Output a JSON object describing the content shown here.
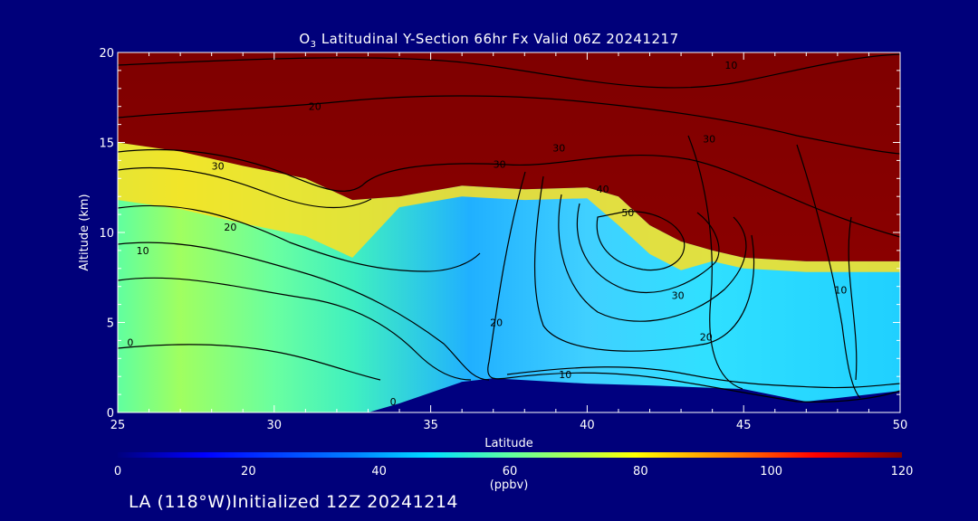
{
  "header": {
    "title_prefix": "O",
    "title_sub": "3",
    "title_rest": " Latitudinal Y-Section 66hr  Fx Valid 06Z 20241217"
  },
  "footer": {
    "label": "LA (118°W)Initialized 12Z 20241214"
  },
  "colors": {
    "background": "#00007a",
    "colormap": [
      "#00007f",
      "#0000ff",
      "#0080ff",
      "#00e0ff",
      "#60ffa0",
      "#c0ff40",
      "#ffff00",
      "#ff8000",
      "#ff0000",
      "#800000"
    ]
  },
  "chart_data": {
    "type": "heatmap",
    "xlabel": "Latitude",
    "ylabel": "Altitude (km)",
    "xlim": [
      25,
      50
    ],
    "ylim": [
      0,
      20
    ],
    "xticks": [
      25,
      30,
      35,
      40,
      45,
      50
    ],
    "yticks": [
      0,
      5,
      10,
      15,
      20
    ],
    "colorbar": {
      "min": 0,
      "max": 120,
      "ticks": [
        0,
        20,
        40,
        60,
        80,
        100,
        120
      ],
      "unit": "(ppbv)"
    },
    "tropopause_altitude_km": [
      [
        25,
        15.0
      ],
      [
        27,
        14.5
      ],
      [
        29,
        13.7
      ],
      [
        31,
        13.0
      ],
      [
        32.5,
        11.8
      ],
      [
        34,
        12.0
      ],
      [
        36,
        12.6
      ],
      [
        38,
        12.4
      ],
      [
        40,
        12.5
      ],
      [
        41,
        12.0
      ],
      [
        42,
        10.4
      ],
      [
        43,
        9.5
      ],
      [
        44,
        9.0
      ],
      [
        45,
        8.6
      ],
      [
        47,
        8.4
      ],
      [
        50,
        8.4
      ]
    ],
    "terrain_altitude_km": [
      [
        25,
        0
      ],
      [
        33,
        0
      ],
      [
        34,
        0.5
      ],
      [
        35,
        1.1
      ],
      [
        36,
        1.7
      ],
      [
        37,
        1.9
      ],
      [
        40,
        1.6
      ],
      [
        42,
        1.5
      ],
      [
        45,
        1.3
      ],
      [
        47,
        0.6
      ],
      [
        50,
        1.2
      ]
    ],
    "contour_labels": [
      {
        "text": "10",
        "lat": 44.6,
        "alt": 19.1
      },
      {
        "text": "20",
        "lat": 31.3,
        "alt": 16.8
      },
      {
        "text": "30",
        "lat": 43.9,
        "alt": 15.0
      },
      {
        "text": "30",
        "lat": 39.1,
        "alt": 14.5
      },
      {
        "text": "30",
        "lat": 28.2,
        "alt": 13.5
      },
      {
        "text": "30",
        "lat": 37.2,
        "alt": 13.6
      },
      {
        "text": "20",
        "lat": 28.6,
        "alt": 10.1
      },
      {
        "text": "10",
        "lat": 25.8,
        "alt": 8.8
      },
      {
        "text": "50",
        "lat": 41.3,
        "alt": 10.9
      },
      {
        "text": "40",
        "lat": 40.5,
        "alt": 12.2
      },
      {
        "text": "30",
        "lat": 42.9,
        "alt": 6.3
      },
      {
        "text": "20",
        "lat": 37.1,
        "alt": 4.8
      },
      {
        "text": "20",
        "lat": 43.8,
        "alt": 4.0
      },
      {
        "text": "10",
        "lat": 39.3,
        "alt": 1.9
      },
      {
        "text": "10",
        "lat": 48.1,
        "alt": 6.6
      },
      {
        "text": "0",
        "lat": 25.4,
        "alt": 3.7
      },
      {
        "text": "0",
        "lat": 33.8,
        "alt": 0.4
      }
    ]
  }
}
